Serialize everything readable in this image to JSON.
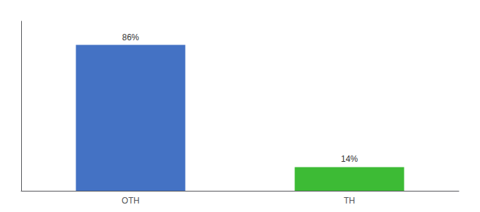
{
  "chart_data": {
    "type": "bar",
    "categories": [
      "OTH",
      "TH"
    ],
    "values": [
      86,
      14
    ],
    "value_labels": [
      "86%",
      "14%"
    ],
    "colors": [
      "#4472c4",
      "#3dbb35"
    ],
    "ylim": [
      0,
      100
    ],
    "data_labels": true,
    "tick_labels": "x",
    "grid": false
  }
}
